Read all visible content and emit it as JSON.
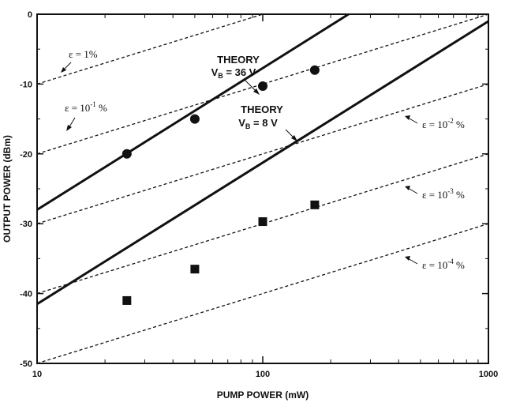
{
  "chart_data": {
    "type": "scatter",
    "title": "",
    "xlabel": "PUMP POWER (mW)",
    "ylabel": "OUTPUT POWER (dBm)",
    "xscale": "log",
    "xlim": [
      10,
      1000
    ],
    "ylim": [
      -50,
      0
    ],
    "x_ticks": [
      10,
      100,
      1000
    ],
    "x_tick_labels": [
      "10",
      "100",
      "1000"
    ],
    "y_ticks": [
      0,
      -10,
      -20,
      -30,
      -40,
      -50
    ],
    "y_tick_labels": [
      "0",
      "-10",
      "-20",
      "-30",
      "-40",
      "-50"
    ],
    "grid": false,
    "theory_lines": [
      {
        "name": "THEORY",
        "subscript_label": "VB = 36 V",
        "x": [
          10,
          240
        ],
        "y": [
          -28,
          0
        ]
      },
      {
        "name": "THEORY",
        "subscript_label": "VB = 8 V",
        "x": [
          10,
          1000
        ],
        "y": [
          -41.5,
          -1
        ]
      }
    ],
    "efficiency_lines": [
      {
        "label": "ε = 1%",
        "x": [
          10,
          1000
        ],
        "y": [
          -10,
          10
        ]
      },
      {
        "label": "ε = 10⁻¹ %",
        "x": [
          10,
          1000
        ],
        "y": [
          -20,
          0
        ]
      },
      {
        "label": "ε = 10⁻² %",
        "x": [
          10,
          1000
        ],
        "y": [
          -30,
          -10
        ]
      },
      {
        "label": "ε = 10⁻³ %",
        "x": [
          10,
          1000
        ],
        "y": [
          -40,
          -20
        ]
      },
      {
        "label": "ε = 10⁻⁴ %",
        "x": [
          10,
          1000
        ],
        "y": [
          -50,
          -30
        ]
      }
    ],
    "series": [
      {
        "marker": "circle",
        "x": [
          25,
          50,
          100,
          170
        ],
        "y": [
          -20,
          -15,
          -10.3,
          -8
        ]
      },
      {
        "marker": "square",
        "x": [
          25,
          50,
          100,
          170
        ],
        "y": [
          -41,
          -36.5,
          -29.7,
          -27.3
        ]
      }
    ]
  }
}
